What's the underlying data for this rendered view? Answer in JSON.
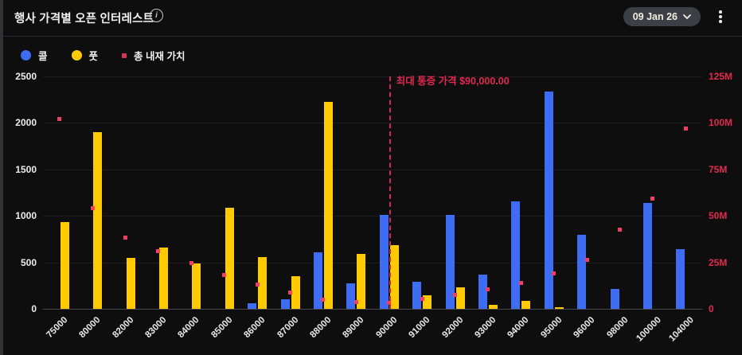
{
  "header": {
    "title": "행사 가격별 오픈 인터레스트",
    "info_icon": "i",
    "date_button": {
      "label": "09 Jan 26",
      "chevron_icon": "chevron-down"
    },
    "menu_icon": "kebab-menu"
  },
  "legend": [
    {
      "label": "콜",
      "color": "#3e6cf2",
      "shape": "circle"
    },
    {
      "label": "풋",
      "color": "#ffcb00",
      "shape": "circle"
    },
    {
      "label": "총 내재 가치",
      "color": "#d93253",
      "shape": "square"
    }
  ],
  "chart_data": {
    "type": "bar",
    "title": "행사 가격별 오픈 인터레스트",
    "categories": [
      "75000",
      "80000",
      "82000",
      "83000",
      "84000",
      "85000",
      "86000",
      "87000",
      "88000",
      "89000",
      "90000",
      "91000",
      "92000",
      "93000",
      "94000",
      "95000",
      "96000",
      "98000",
      "100000",
      "104000"
    ],
    "series": [
      {
        "name": "콜",
        "type": "bar",
        "axis": "left",
        "color": "#3e6cf2",
        "values": [
          0,
          0,
          0,
          0,
          0,
          0,
          60,
          105,
          610,
          275,
          1010,
          295,
          1010,
          370,
          1155,
          2340,
          795,
          210,
          1135,
          645
        ]
      },
      {
        "name": "풋",
        "type": "bar",
        "axis": "left",
        "color": "#ffcb00",
        "values": [
          930,
          1900,
          550,
          660,
          490,
          1085,
          560,
          355,
          2230,
          590,
          685,
          145,
          230,
          40,
          85,
          15,
          0,
          0,
          0,
          0
        ]
      },
      {
        "name": "총 내재 가치",
        "type": "scatter",
        "axis": "right",
        "color": "#ef3f63",
        "values_million": [
          102,
          54,
          38.5,
          31,
          24.5,
          18,
          13,
          8.7,
          5,
          3.5,
          3.3,
          5.3,
          7.4,
          10.3,
          14.1,
          19.1,
          26.3,
          42.5,
          59.5,
          97
        ]
      }
    ],
    "left_axis": {
      "ticks": [
        "0",
        "500",
        "1000",
        "1500",
        "2000",
        "2500"
      ],
      "range": [
        0,
        2500
      ],
      "color": "#ededed"
    },
    "right_axis": {
      "ticks": [
        "0",
        "25M",
        "50M",
        "75M",
        "100M",
        "125M"
      ],
      "range_million": [
        0,
        125
      ],
      "color": "#e0294e"
    },
    "annotation": {
      "text": "최대 통증 가격 $90,000.00",
      "at_category": "90000",
      "color": "#e0294e"
    },
    "grid": true,
    "legend_position": "top-left"
  }
}
